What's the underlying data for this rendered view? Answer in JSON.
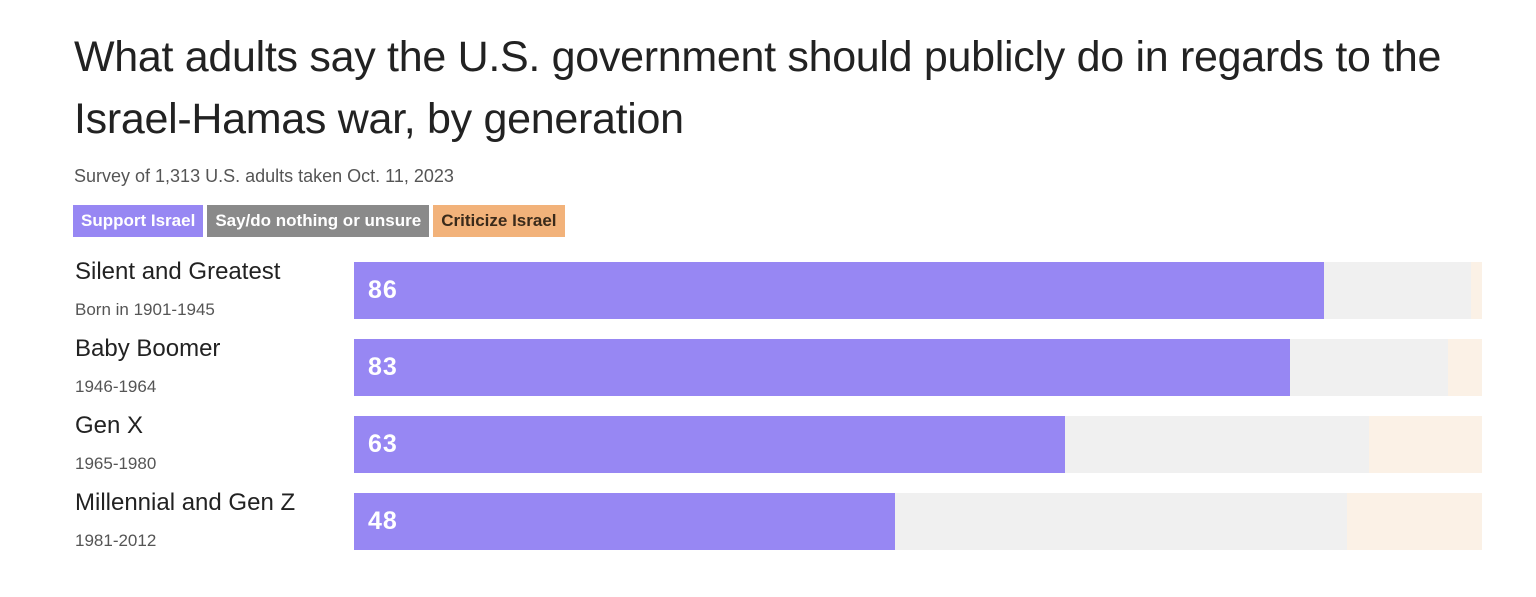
{
  "title": "What adults say the U.S. government should publicly do in regards to the Israel-Hamas war, by generation",
  "subtitle": "Survey of 1,313 U.S. adults taken Oct. 11, 2023",
  "colors": {
    "support": "#9787f3",
    "neutral": "#f0f0f0",
    "criticize": "#fbf1e6",
    "legend_neutral": "#8a8a8a",
    "legend_criticize": "#f2b27a",
    "legend_criticize_text": "#3a2a1a"
  },
  "chart_data": {
    "type": "bar",
    "orientation": "horizontal",
    "stacked": true,
    "xlim": [
      0,
      100
    ],
    "legend": [
      "Support Israel",
      "Say/do nothing or unsure",
      "Criticize Israel"
    ],
    "legend_placement": "top-left",
    "categories": [
      {
        "name": "Silent and Greatest",
        "sub": "Born in 1901-1945"
      },
      {
        "name": "Baby Boomer",
        "sub": "1946-1964"
      },
      {
        "name": "Gen X",
        "sub": "1965-1980"
      },
      {
        "name": "Millennial and Gen Z",
        "sub": "1981-2012"
      }
    ],
    "series": [
      {
        "name": "Support Israel",
        "values": [
          86,
          83,
          63,
          48
        ],
        "value_labels": [
          "86",
          "83",
          "63",
          "48"
        ]
      },
      {
        "name": "Say/do nothing or unsure",
        "values": [
          13,
          14,
          27,
          40
        ]
      },
      {
        "name": "Criticize Israel",
        "values": [
          1,
          3,
          10,
          12
        ]
      }
    ]
  }
}
